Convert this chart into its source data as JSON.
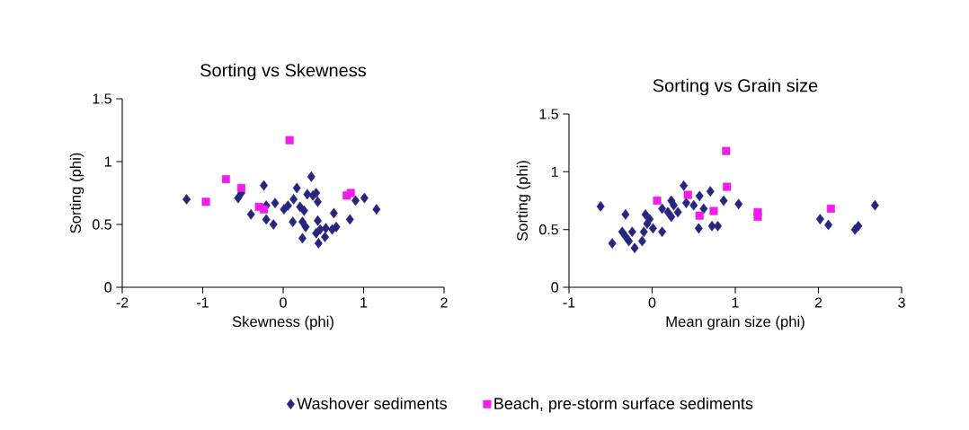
{
  "chart_data": [
    {
      "type": "scatter",
      "title": "Sorting vs  Skewness",
      "xlabel": "Skewness (phi)",
      "ylabel": "Sorting (phi)",
      "xlim": [
        -2,
        2
      ],
      "xticks": [
        -2,
        -1,
        0,
        1,
        2
      ],
      "ylim": [
        0,
        1.5
      ],
      "yticks": [
        0,
        0.5,
        1,
        1.5
      ],
      "legend": "bottom",
      "series": [
        {
          "name": "Washover sediments",
          "color": "#26267f",
          "marker": "diamond",
          "x": [
            -1.2,
            -0.56,
            -0.52,
            -0.4,
            -0.24,
            -0.21,
            -0.21,
            -0.12,
            -0.1,
            0.01,
            0.06,
            0.12,
            0.13,
            0.17,
            0.21,
            0.24,
            0.26,
            0.24,
            0.28,
            0.3,
            0.35,
            0.37,
            0.41,
            0.43,
            0.43,
            0.41,
            0.44,
            0.46,
            0.52,
            0.53,
            0.61,
            0.63,
            0.66,
            0.83,
            0.9,
            1.01,
            1.16
          ],
          "values": [
            0.7,
            0.71,
            0.75,
            0.58,
            0.81,
            0.65,
            0.54,
            0.5,
            0.67,
            0.62,
            0.65,
            0.52,
            0.7,
            0.79,
            0.64,
            0.52,
            0.61,
            0.39,
            0.48,
            0.74,
            0.88,
            0.73,
            0.75,
            0.68,
            0.53,
            0.43,
            0.35,
            0.46,
            0.4,
            0.47,
            0.46,
            0.59,
            0.48,
            0.54,
            0.69,
            0.71,
            0.62
          ]
        },
        {
          "name": "Beach, pre-storm surface sediments",
          "color": "#f01ee8",
          "marker": "square",
          "x": [
            0.08,
            -0.71,
            -0.52,
            -0.96,
            -0.3,
            -0.24,
            0.79,
            0.84
          ],
          "values": [
            1.17,
            0.86,
            0.79,
            0.68,
            0.64,
            0.62,
            0.73,
            0.75
          ]
        }
      ]
    },
    {
      "type": "scatter",
      "title": "Sorting vs  Grain size",
      "xlabel": "Mean grain size (phi)",
      "ylabel": "Sorting (phi)",
      "xlim": [
        -1,
        3
      ],
      "xticks": [
        -1,
        0,
        1,
        2,
        3
      ],
      "ylim": [
        0,
        1.5
      ],
      "yticks": [
        0,
        0.5,
        1,
        1.5
      ],
      "series": [
        {
          "color": "#26267f",
          "marker": "diamond",
          "x": [
            -0.62,
            -0.48,
            -0.32,
            -0.36,
            -0.32,
            -0.28,
            -0.21,
            -0.24,
            -0.12,
            -0.1,
            -0.08,
            -0.06,
            -0.03,
            0.01,
            0.12,
            0.12,
            0.19,
            0.23,
            0.23,
            0.26,
            0.31,
            0.38,
            0.41,
            0.5,
            0.56,
            0.57,
            0.62,
            0.7,
            0.72,
            0.79,
            0.86,
            1.04,
            2.02,
            2.12,
            2.44,
            2.48,
            2.68
          ],
          "values": [
            0.7,
            0.38,
            0.63,
            0.48,
            0.44,
            0.4,
            0.34,
            0.48,
            0.4,
            0.48,
            0.63,
            0.55,
            0.59,
            0.51,
            0.48,
            0.68,
            0.65,
            0.61,
            0.75,
            0.71,
            0.65,
            0.88,
            0.73,
            0.71,
            0.51,
            0.79,
            0.68,
            0.83,
            0.53,
            0.53,
            0.75,
            0.72,
            0.59,
            0.54,
            0.5,
            0.53,
            0.71
          ]
        },
        {
          "color": "#f01ee8",
          "marker": "square",
          "x": [
            0.06,
            0.43,
            0.57,
            0.74,
            0.89,
            0.9,
            1.27,
            1.27,
            2.15
          ],
          "values": [
            0.75,
            0.8,
            0.62,
            0.66,
            1.18,
            0.87,
            0.65,
            0.61,
            0.68
          ]
        }
      ]
    }
  ]
}
